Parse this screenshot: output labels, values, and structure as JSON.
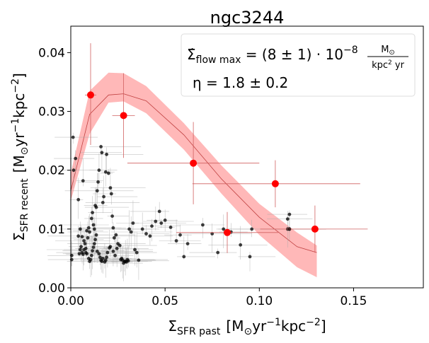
{
  "chart_data": {
    "type": "scatter",
    "title": "ngc3244",
    "xlabel": "Σ",
    "xlabel_sub": "SFR past",
    "xlabel_units": "[M",
    "xlabel_units_sub": "⊙",
    "xlabel_units_rest": "yr",
    "xlabel_units_exp1": "−1",
    "xlabel_units_kpc": "kpc",
    "xlabel_units_exp2": "−2",
    "xlabel_units_close": "]",
    "ylabel": "Σ",
    "ylabel_sub": "SFR recent",
    "ylabel_units": "[M",
    "xlim": [
      0,
      0.187
    ],
    "ylim": [
      0,
      0.0445
    ],
    "xticks": [
      0.0,
      0.05,
      0.1,
      0.15
    ],
    "xtick_labels": [
      "0.00",
      "0.05",
      "0.10",
      "0.15"
    ],
    "yticks": [
      0.0,
      0.01,
      0.02,
      0.03,
      0.04
    ],
    "ytick_labels": [
      "0.00",
      "0.01",
      "0.02",
      "0.03",
      "0.04"
    ],
    "model_band": {
      "x": [
        0.0,
        0.01,
        0.02,
        0.028,
        0.04,
        0.06,
        0.08,
        0.1,
        0.12,
        0.1305
      ],
      "low": [
        0.0148,
        0.0262,
        0.0315,
        0.0317,
        0.0297,
        0.0235,
        0.016,
        0.009,
        0.0035,
        0.0018
      ],
      "high": [
        0.0195,
        0.0335,
        0.0366,
        0.0365,
        0.0343,
        0.028,
        0.0208,
        0.0143,
        0.0094,
        0.0072
      ],
      "mid": [
        0.0165,
        0.0295,
        0.0328,
        0.033,
        0.0318,
        0.026,
        0.0185,
        0.012,
        0.007,
        0.006
      ],
      "color": "#ff0000"
    },
    "binned_points": [
      {
        "x": 0.0105,
        "y": 0.0328,
        "xerr": 0.003,
        "yerr_lo": 0.0085,
        "yerr_hi": 0.0088
      },
      {
        "x": 0.028,
        "y": 0.0293,
        "xerr": 0.006,
        "yerr_lo": 0.0072,
        "yerr_hi": 0.0072
      },
      {
        "x": 0.065,
        "y": 0.0212,
        "xerr_lo": 0.035,
        "xerr_hi": 0.035,
        "yerr_lo": 0.007,
        "yerr_hi": 0.007
      },
      {
        "x": 0.1085,
        "y": 0.0177,
        "xerr_lo": 0.044,
        "xerr_hi": 0.045,
        "yerr_lo": 0.004,
        "yerr_hi": 0.004
      },
      {
        "x": 0.083,
        "y": 0.0094,
        "xerr_lo": 0.027,
        "xerr_hi": 0.027,
        "yerr_lo": 0.0035,
        "yerr_hi": 0.0035
      },
      {
        "x": 0.1295,
        "y": 0.01,
        "xerr_lo": 0.029,
        "xerr_hi": 0.028,
        "yerr_lo": 0.004,
        "yerr_hi": 0.004
      }
    ],
    "points": [
      {
        "x": 0.0012,
        "y": 0.0256
      },
      {
        "x": 0.0015,
        "y": 0.02
      },
      {
        "x": 0.0025,
        "y": 0.022
      },
      {
        "x": 0.0005,
        "y": 0.0048
      },
      {
        "x": 0.0005,
        "y": 0.0055
      },
      {
        "x": 0.004,
        "y": 0.015
      },
      {
        "x": 0.0065,
        "y": 0.0182
      },
      {
        "x": 0.009,
        "y": 0.0085
      },
      {
        "x": 0.008,
        "y": 0.006
      },
      {
        "x": 0.007,
        "y": 0.0065
      },
      {
        "x": 0.0085,
        "y": 0.0097
      },
      {
        "x": 0.0095,
        "y": 0.0102
      },
      {
        "x": 0.01,
        "y": 0.0095
      },
      {
        "x": 0.011,
        "y": 0.0118
      },
      {
        "x": 0.0115,
        "y": 0.0128
      },
      {
        "x": 0.012,
        "y": 0.0107
      },
      {
        "x": 0.0125,
        "y": 0.01
      },
      {
        "x": 0.013,
        "y": 0.014
      },
      {
        "x": 0.0135,
        "y": 0.0137
      },
      {
        "x": 0.014,
        "y": 0.0165
      },
      {
        "x": 0.0145,
        "y": 0.018
      },
      {
        "x": 0.015,
        "y": 0.02
      },
      {
        "x": 0.016,
        "y": 0.024
      },
      {
        "x": 0.0165,
        "y": 0.023
      },
      {
        "x": 0.017,
        "y": 0.0145
      },
      {
        "x": 0.0175,
        "y": 0.0155
      },
      {
        "x": 0.0185,
        "y": 0.0197
      },
      {
        "x": 0.019,
        "y": 0.0227
      },
      {
        "x": 0.02,
        "y": 0.0195
      },
      {
        "x": 0.021,
        "y": 0.017
      },
      {
        "x": 0.0215,
        "y": 0.016
      },
      {
        "x": 0.022,
        "y": 0.0122
      },
      {
        "x": 0.0225,
        "y": 0.0102
      },
      {
        "x": 0.023,
        "y": 0.0085
      },
      {
        "x": 0.024,
        "y": 0.009
      },
      {
        "x": 0.0245,
        "y": 0.0067
      },
      {
        "x": 0.025,
        "y": 0.0075
      },
      {
        "x": 0.026,
        "y": 0.0072
      },
      {
        "x": 0.027,
        "y": 0.005
      },
      {
        "x": 0.0275,
        "y": 0.0047
      },
      {
        "x": 0.028,
        "y": 0.0042
      },
      {
        "x": 0.029,
        "y": 0.0045
      },
      {
        "x": 0.03,
        "y": 0.0048
      },
      {
        "x": 0.031,
        "y": 0.01
      },
      {
        "x": 0.032,
        "y": 0.0095
      },
      {
        "x": 0.033,
        "y": 0.011
      },
      {
        "x": 0.034,
        "y": 0.0065
      },
      {
        "x": 0.035,
        "y": 0.006
      },
      {
        "x": 0.036,
        "y": 0.0047
      },
      {
        "x": 0.038,
        "y": 0.01
      },
      {
        "x": 0.04,
        "y": 0.0092
      },
      {
        "x": 0.042,
        "y": 0.0088
      },
      {
        "x": 0.043,
        "y": 0.0105
      },
      {
        "x": 0.045,
        "y": 0.0113
      },
      {
        "x": 0.047,
        "y": 0.013
      },
      {
        "x": 0.048,
        "y": 0.011
      },
      {
        "x": 0.05,
        "y": 0.0115
      },
      {
        "x": 0.053,
        "y": 0.0103
      },
      {
        "x": 0.056,
        "y": 0.008
      },
      {
        "x": 0.058,
        "y": 0.009
      },
      {
        "x": 0.06,
        "y": 0.0053
      },
      {
        "x": 0.062,
        "y": 0.0075
      },
      {
        "x": 0.07,
        "y": 0.0107
      },
      {
        "x": 0.075,
        "y": 0.0092
      },
      {
        "x": 0.078,
        "y": 0.006
      },
      {
        "x": 0.081,
        "y": 0.01
      },
      {
        "x": 0.085,
        "y": 0.0095
      },
      {
        "x": 0.09,
        "y": 0.0073
      },
      {
        "x": 0.095,
        "y": 0.0053
      },
      {
        "x": 0.096,
        "y": 0.01
      },
      {
        "x": 0.115,
        "y": 0.0117
      },
      {
        "x": 0.116,
        "y": 0.01
      },
      {
        "x": 0.116,
        "y": 0.0125
      },
      {
        "x": 0.115,
        "y": 0.01
      },
      {
        "x": 0.116,
        "y": 0.01
      },
      {
        "x": 0.005,
        "y": 0.01
      },
      {
        "x": 0.006,
        "y": 0.0087
      },
      {
        "x": 0.007,
        "y": 0.008
      },
      {
        "x": 0.0075,
        "y": 0.0075
      },
      {
        "x": 0.008,
        "y": 0.0067
      },
      {
        "x": 0.0085,
        "y": 0.0058
      },
      {
        "x": 0.0095,
        "y": 0.005
      },
      {
        "x": 0.01,
        "y": 0.0045
      },
      {
        "x": 0.0105,
        "y": 0.0048
      },
      {
        "x": 0.011,
        "y": 0.0055
      },
      {
        "x": 0.0115,
        "y": 0.0063
      },
      {
        "x": 0.012,
        "y": 0.0069
      },
      {
        "x": 0.0125,
        "y": 0.0075
      },
      {
        "x": 0.013,
        "y": 0.0082
      },
      {
        "x": 0.0135,
        "y": 0.009
      },
      {
        "x": 0.014,
        "y": 0.0062
      },
      {
        "x": 0.015,
        "y": 0.0058
      },
      {
        "x": 0.0155,
        "y": 0.0052
      },
      {
        "x": 0.016,
        "y": 0.0047
      },
      {
        "x": 0.0165,
        "y": 0.0045
      },
      {
        "x": 0.017,
        "y": 0.005
      },
      {
        "x": 0.018,
        "y": 0.0044
      },
      {
        "x": 0.0185,
        "y": 0.0047
      },
      {
        "x": 0.019,
        "y": 0.0052
      },
      {
        "x": 0.0195,
        "y": 0.006
      },
      {
        "x": 0.0205,
        "y": 0.0068
      },
      {
        "x": 0.021,
        "y": 0.007
      },
      {
        "x": 0.006,
        "y": 0.006
      },
      {
        "x": 0.0065,
        "y": 0.0057
      },
      {
        "x": 0.0045,
        "y": 0.0058
      },
      {
        "x": 0.005,
        "y": 0.0065
      },
      {
        "x": 0.0055,
        "y": 0.007
      },
      {
        "x": 0.004,
        "y": 0.0088
      },
      {
        "x": 0.0265,
        "y": 0.0048
      },
      {
        "x": 0.0285,
        "y": 0.0045
      },
      {
        "x": 0.0295,
        "y": 0.0044
      },
      {
        "x": 0.0305,
        "y": 0.0046
      },
      {
        "x": 0.0225,
        "y": 0.0062
      },
      {
        "x": 0.0235,
        "y": 0.0055
      }
    ],
    "annotation": {
      "line1_left": "Σ̇",
      "line1_sub": "flow max",
      "line1_eq": " = (8 ± 1) · 10",
      "line1_exp": "−8",
      "line1_frac_num": "M",
      "line1_frac_num_sub": "⊙",
      "line1_frac_den": "kpc",
      "line1_frac_den_exp": "2",
      "line1_frac_den_rest": " yr",
      "line2": "η = 1.8 ± 0.2"
    },
    "colors": {
      "band": "#ff0000",
      "binned": "#ff0000",
      "points": "#000000",
      "errbar_gray": "#aaaaaa",
      "errbar_red": "#d06060"
    }
  }
}
